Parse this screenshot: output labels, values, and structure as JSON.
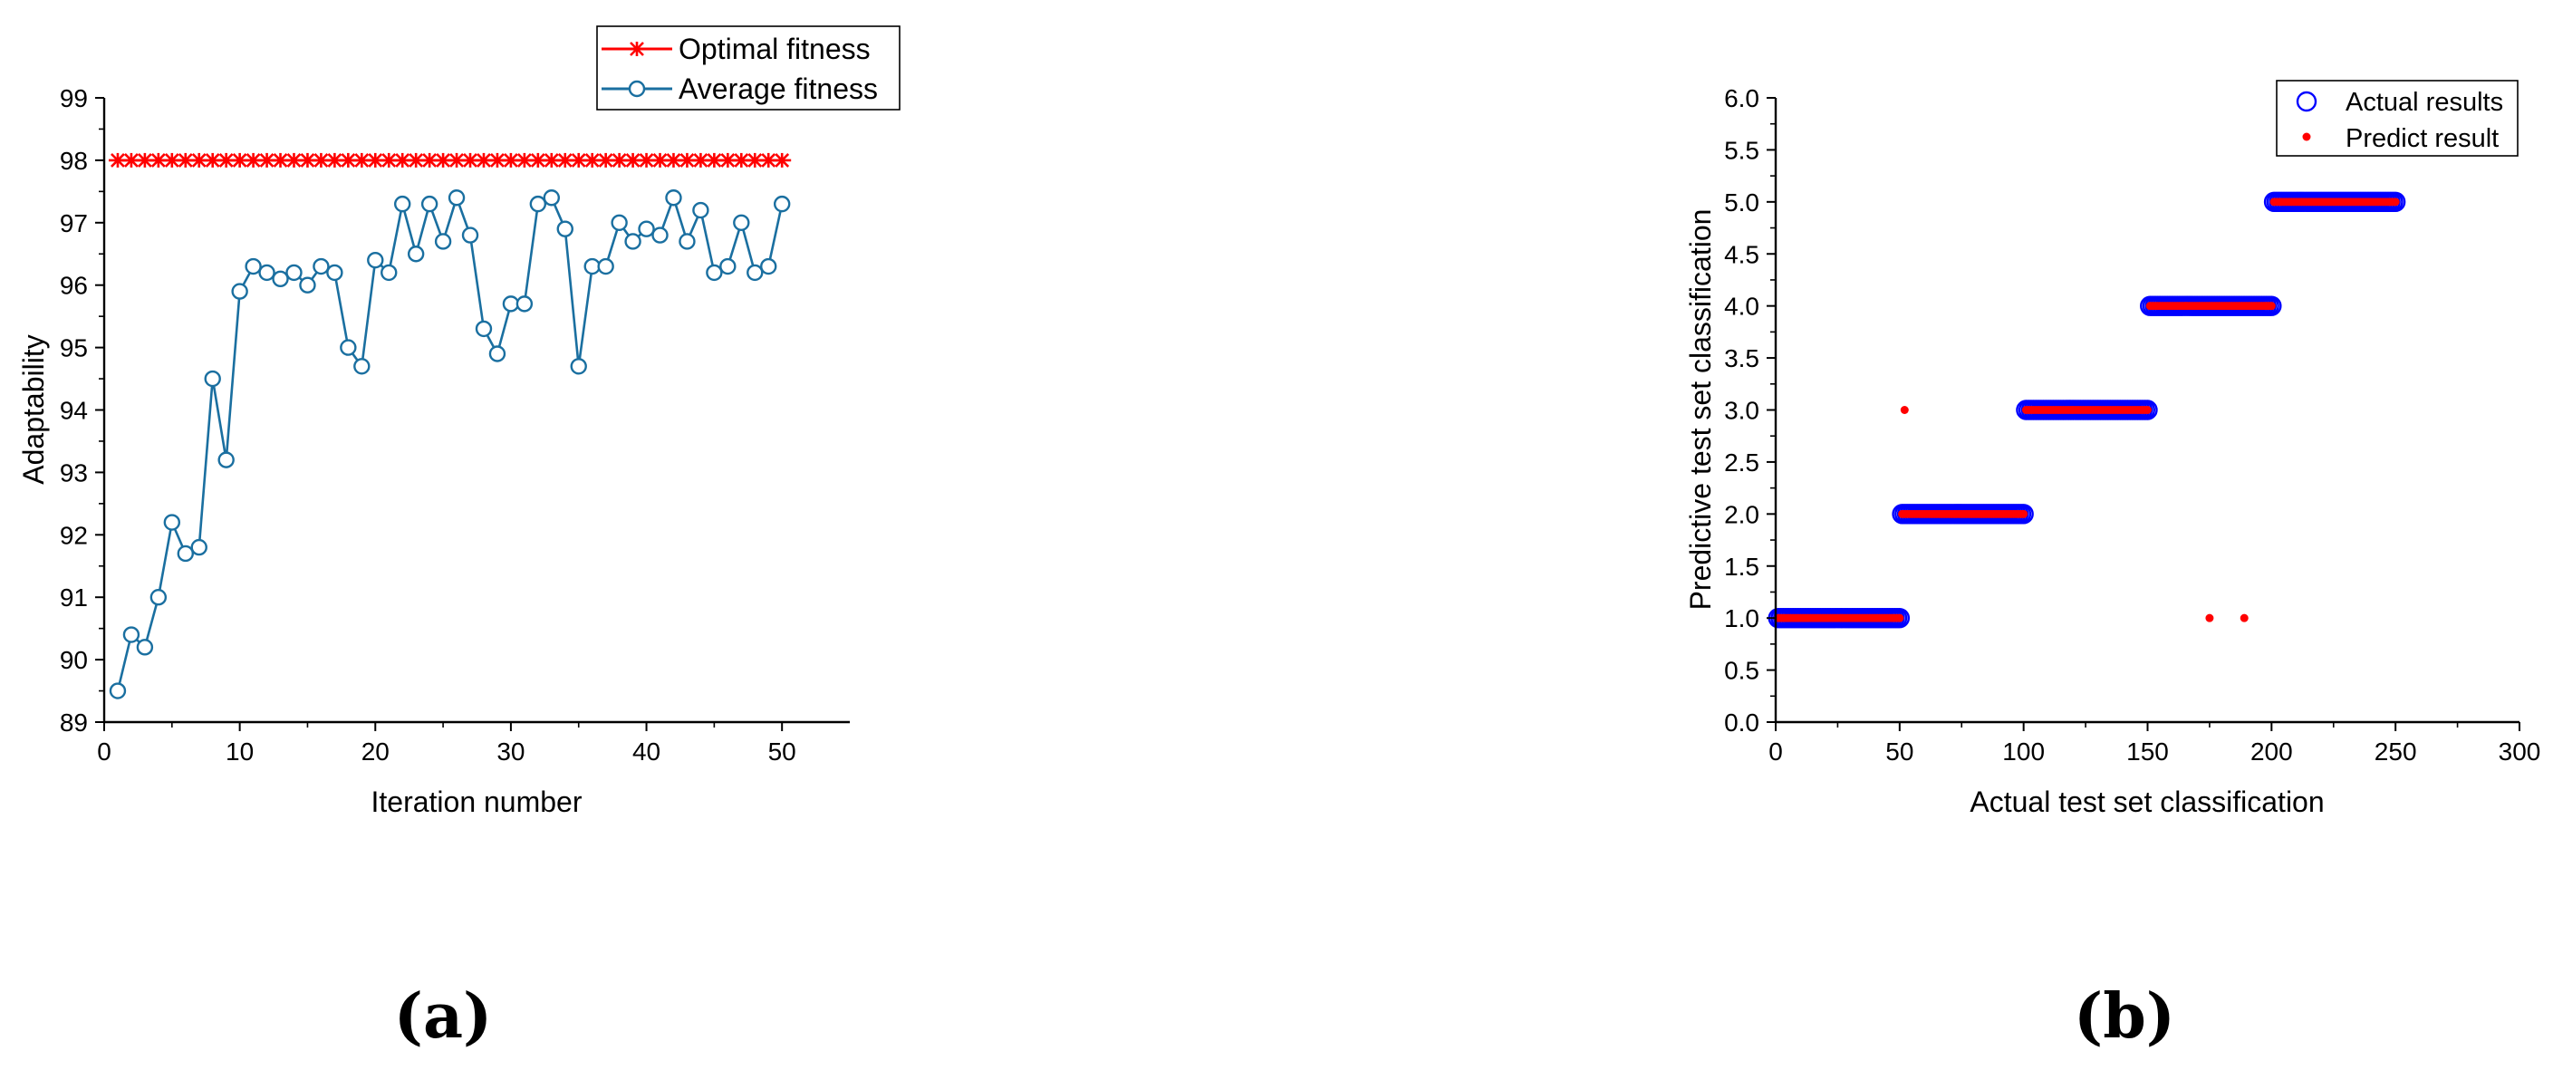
{
  "chart_data": [
    {
      "panel_label": "(a)",
      "type": "line",
      "title": "",
      "xlabel": "Iteration number",
      "ylabel": "Adaptability",
      "xlim": [
        0,
        55
      ],
      "ylim": [
        89,
        99
      ],
      "xticks": [
        0,
        10,
        20,
        30,
        40,
        50
      ],
      "yticks": [
        89,
        90,
        91,
        92,
        93,
        94,
        95,
        96,
        97,
        98,
        99
      ],
      "grid": false,
      "legend_position": "top-right",
      "series": [
        {
          "name": "Optimal fitness",
          "marker": "asterisk",
          "color": "#ff0000",
          "x": [
            1,
            2,
            3,
            4,
            5,
            6,
            7,
            8,
            9,
            10,
            11,
            12,
            13,
            14,
            15,
            16,
            17,
            18,
            19,
            20,
            21,
            22,
            23,
            24,
            25,
            26,
            27,
            28,
            29,
            30,
            31,
            32,
            33,
            34,
            35,
            36,
            37,
            38,
            39,
            40,
            41,
            42,
            43,
            44,
            45,
            46,
            47,
            48,
            49,
            50
          ],
          "values": [
            98,
            98,
            98,
            98,
            98,
            98,
            98,
            98,
            98,
            98,
            98,
            98,
            98,
            98,
            98,
            98,
            98,
            98,
            98,
            98,
            98,
            98,
            98,
            98,
            98,
            98,
            98,
            98,
            98,
            98,
            98,
            98,
            98,
            98,
            98,
            98,
            98,
            98,
            98,
            98,
            98,
            98,
            98,
            98,
            98,
            98,
            98,
            98,
            98,
            98
          ]
        },
        {
          "name": "Average fitness",
          "marker": "open-circle",
          "color": "#1a6fa0",
          "x": [
            1,
            2,
            3,
            4,
            5,
            6,
            7,
            8,
            9,
            10,
            11,
            12,
            13,
            14,
            15,
            16,
            17,
            18,
            19,
            20,
            21,
            22,
            23,
            24,
            25,
            26,
            27,
            28,
            29,
            30,
            31,
            32,
            33,
            34,
            35,
            36,
            37,
            38,
            39,
            40,
            41,
            42,
            43,
            44,
            45,
            46,
            47,
            48,
            49,
            50
          ],
          "values": [
            89.5,
            90.4,
            90.2,
            91.0,
            92.2,
            91.7,
            91.8,
            94.5,
            93.2,
            95.9,
            96.3,
            96.2,
            96.1,
            96.2,
            96.0,
            96.3,
            96.2,
            95.0,
            94.7,
            96.4,
            96.2,
            97.3,
            96.5,
            97.3,
            96.7,
            97.4,
            96.8,
            95.3,
            94.9,
            95.7,
            95.7,
            97.3,
            97.4,
            96.9,
            94.7,
            96.3,
            96.3,
            97.0,
            96.7,
            96.9,
            96.8,
            97.4,
            96.7,
            97.2,
            96.2,
            96.3,
            97.0,
            96.2,
            96.3,
            97.3
          ]
        }
      ]
    },
    {
      "panel_label": "(b)",
      "type": "scatter",
      "title": "",
      "xlabel": "Actual test set classification",
      "ylabel": "Predictive test set classification",
      "xlim": [
        0,
        300
      ],
      "ylim": [
        0.0,
        6.0
      ],
      "xticks": [
        0,
        50,
        100,
        150,
        200,
        250,
        300
      ],
      "yticks": [
        "0.0",
        "0.5",
        "1.0",
        "1.5",
        "2.0",
        "2.5",
        "3.0",
        "3.5",
        "4.0",
        "4.5",
        "5.0",
        "5.5",
        "6.0"
      ],
      "grid": false,
      "legend_position": "top-right",
      "series": [
        {
          "name": "Actual results",
          "marker": "open-circle",
          "color": "#0000ff",
          "segments": [
            {
              "x_from": 1,
              "x_to": 50,
              "y": 1
            },
            {
              "x_from": 51,
              "x_to": 100,
              "y": 2
            },
            {
              "x_from": 101,
              "x_to": 150,
              "y": 3
            },
            {
              "x_from": 151,
              "x_to": 200,
              "y": 4
            },
            {
              "x_from": 201,
              "x_to": 250,
              "y": 5
            }
          ]
        },
        {
          "name": "Predict result",
          "marker": "filled-dot",
          "color": "#ff0000",
          "segments": [
            {
              "x_from": 1,
              "x_to": 50,
              "y": 1
            },
            {
              "x_from": 51,
              "x_to": 100,
              "y": 2
            },
            {
              "x_from": 101,
              "x_to": 150,
              "y": 3
            },
            {
              "x_from": 151,
              "x_to": 200,
              "y": 4
            },
            {
              "x_from": 201,
              "x_to": 250,
              "y": 5
            }
          ],
          "outliers": [
            {
              "x": 52,
              "y": 3
            },
            {
              "x": 175,
              "y": 1
            },
            {
              "x": 189,
              "y": 1
            }
          ]
        }
      ]
    }
  ]
}
